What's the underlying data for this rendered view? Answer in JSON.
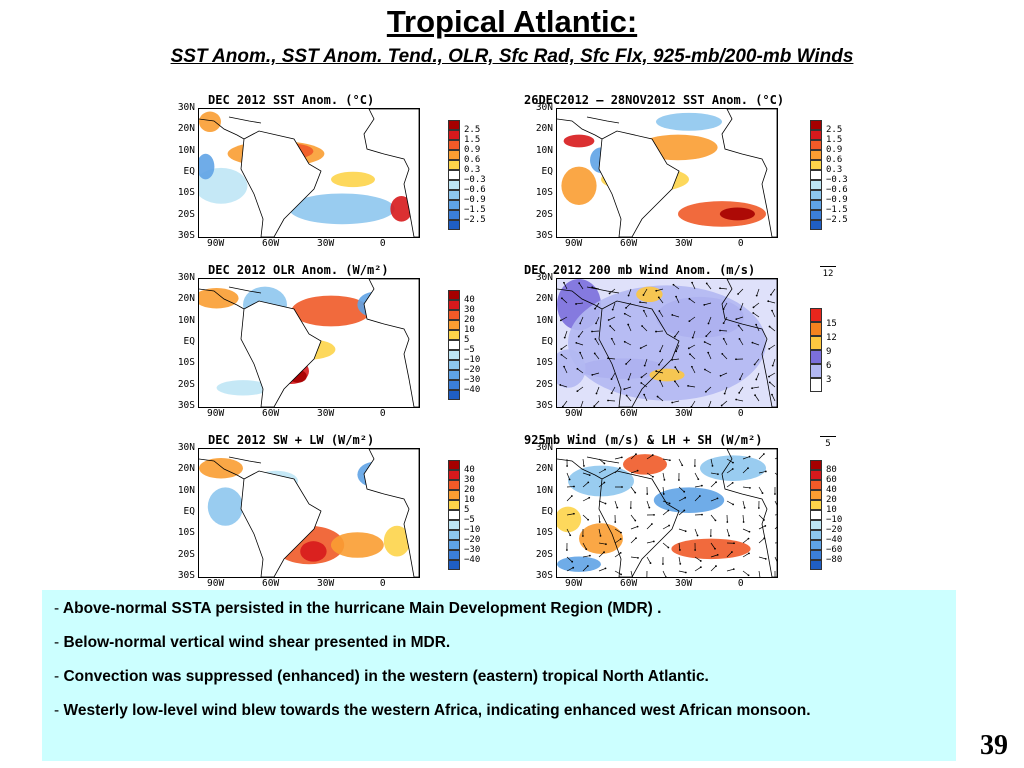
{
  "slide": {
    "title": "Tropical Atlantic:",
    "subtitle": "SST Anom., SST Anom. Tend., OLR, Sfc Rad, Sfc Flx, 925-mb/200-mb Winds",
    "page_number": "39"
  },
  "axis": {
    "lat_ticks": [
      "30N",
      "20N",
      "10N",
      "EQ",
      "10S",
      "20S",
      "30S"
    ],
    "lon_ticks": [
      "90W",
      "60W",
      "30W",
      "0"
    ]
  },
  "panels": [
    {
      "id": "sst",
      "title": "DEC 2012 SST Anom. (°C)",
      "legend": [
        "2.5",
        "1.5",
        "0.9",
        "0.6",
        "0.3",
        "−0.3",
        "−0.6",
        "−0.9",
        "−1.5",
        "−2.5"
      ]
    },
    {
      "id": "ssttend",
      "title": "26DEC2012 – 28NOV2012 SST Anom. (°C)",
      "legend": [
        "2.5",
        "1.5",
        "0.9",
        "0.6",
        "0.3",
        "−0.3",
        "−0.6",
        "−0.9",
        "−1.5",
        "−2.5"
      ]
    },
    {
      "id": "olr",
      "title": "DEC 2012 OLR Anom. (W/m²)",
      "legend": [
        "40",
        "30",
        "20",
        "10",
        "5",
        "−5",
        "−10",
        "−20",
        "−30",
        "−40"
      ]
    },
    {
      "id": "wind200",
      "title": "DEC 2012 200 mb Wind Anom. (m/s)",
      "ref_vector": "12",
      "legend": [
        "15",
        "12",
        "9",
        "6",
        "3"
      ]
    },
    {
      "id": "swlw",
      "title": "DEC 2012 SW + LW (W/m²)",
      "legend": [
        "40",
        "30",
        "20",
        "10",
        "5",
        "−5",
        "−10",
        "−20",
        "−30",
        "−40"
      ]
    },
    {
      "id": "wind925",
      "title": "925mb Wind (m/s) & LH + SH (W/m²)",
      "ref_vector": "5",
      "legend": [
        "80",
        "60",
        "40",
        "20",
        "10",
        "−10",
        "−20",
        "−40",
        "−60",
        "−80"
      ]
    }
  ],
  "bullets": [
    {
      "dash": "-",
      "text": "Above-normal SSTA persisted in the hurricane Main Development Region (MDR) ."
    },
    {
      "dash": "-",
      "text": "Below-normal vertical wind shear presented in MDR."
    },
    {
      "dash": "-",
      "text": "Convection was suppressed (enhanced) in the western (eastern) tropical North Atlantic."
    },
    {
      "dash": "-",
      "text": "Westerly low-level  wind blew towards the  western Africa, indicating enhanced west African monsoon."
    }
  ],
  "colors": {
    "div_scale": [
      "#a50000",
      "#d7191c",
      "#f05a28",
      "#f99d32",
      "#fdd44a",
      "#ffffff",
      "#bfe6f5",
      "#8ec7ee",
      "#5fa3e6",
      "#3b7fd9",
      "#1f5ec4"
    ],
    "wind_scale": [
      "#e8261c",
      "#f5831f",
      "#fdc740",
      "#7b6fdb",
      "#b3b8f2",
      "#ffffff"
    ],
    "textbox_bg": "#ccffff"
  }
}
